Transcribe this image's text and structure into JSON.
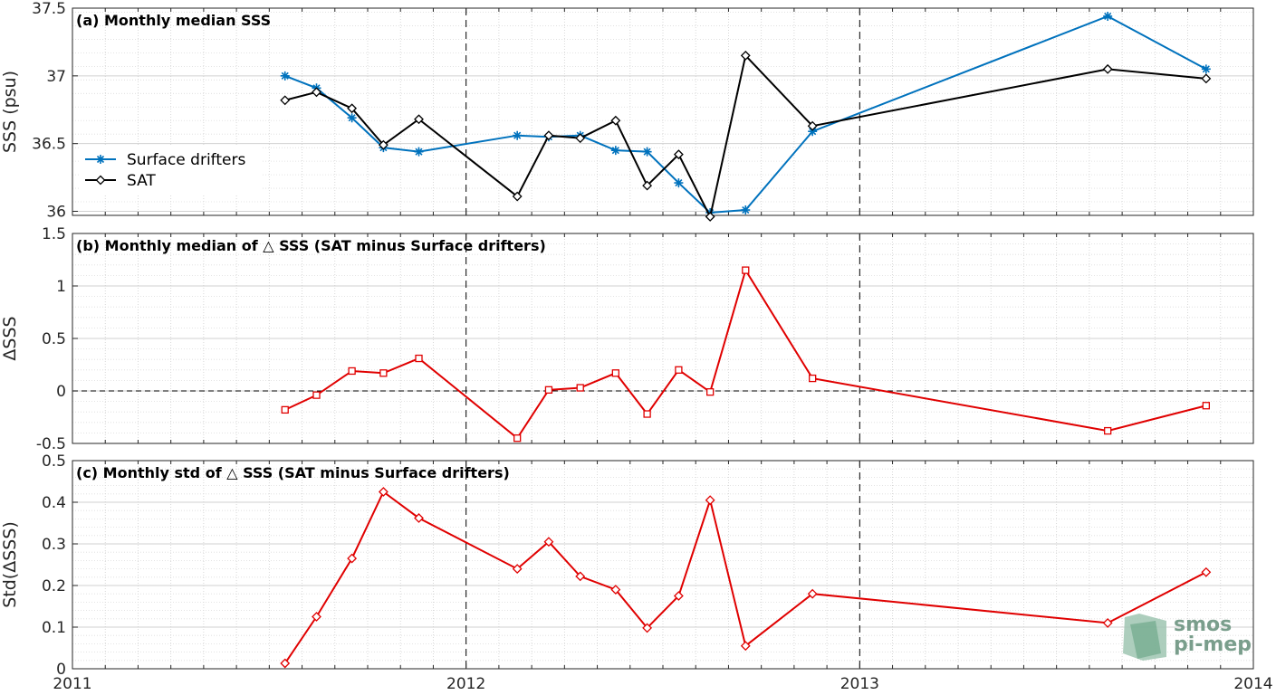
{
  "chart_data": [
    {
      "type": "line",
      "title": "(a) Monthly median SSS",
      "ylabel": "SSS (psu)",
      "ylim": [
        35.97,
        37.5
      ],
      "yticks": [
        36,
        36.5,
        37,
        37.5
      ],
      "ytick_labels": [
        "36",
        "36.5",
        "37",
        "37.5"
      ],
      "xlim": [
        2011,
        2014
      ],
      "grid": true,
      "legend": "bottom-left",
      "series": [
        {
          "name": "Surface drifters",
          "color": "#0072bd",
          "marker": "star",
          "x": [
            2011.54,
            2011.62,
            2011.71,
            2011.79,
            2011.88,
            2012.13,
            2012.21,
            2012.29,
            2012.38,
            2012.46,
            2012.54,
            2012.62,
            2012.71,
            2012.88,
            2013.63,
            2013.88
          ],
          "y": [
            37.0,
            36.91,
            36.69,
            36.47,
            36.44,
            36.56,
            36.55,
            36.56,
            36.45,
            36.44,
            36.21,
            35.99,
            36.01,
            36.59,
            37.44,
            37.05
          ]
        },
        {
          "name": "SAT",
          "color": "#000000",
          "marker": "diamond",
          "x": [
            2011.54,
            2011.62,
            2011.71,
            2011.79,
            2011.88,
            2012.13,
            2012.21,
            2012.29,
            2012.38,
            2012.46,
            2012.54,
            2012.62,
            2012.71,
            2012.88,
            2013.63,
            2013.88
          ],
          "y": [
            36.82,
            36.88,
            36.76,
            36.49,
            36.68,
            36.11,
            36.56,
            36.54,
            36.67,
            36.19,
            36.42,
            35.96,
            37.15,
            36.63,
            37.05,
            36.98
          ]
        }
      ]
    },
    {
      "type": "line",
      "title": "(b) Monthly median of △ SSS (SAT minus Surface drifters)",
      "ylabel": "ΔSSS",
      "ylim": [
        -0.5,
        1.5
      ],
      "yticks": [
        -0.5,
        0,
        0.5,
        1,
        1.5
      ],
      "ytick_labels": [
        "-0.5",
        "0",
        "0.5",
        "1",
        "1.5"
      ],
      "xlim": [
        2011,
        2014
      ],
      "grid": true,
      "series": [
        {
          "color": "#e00000",
          "marker": "square",
          "x": [
            2011.54,
            2011.62,
            2011.71,
            2011.79,
            2011.88,
            2012.13,
            2012.21,
            2012.29,
            2012.38,
            2012.46,
            2012.54,
            2012.62,
            2012.71,
            2012.88,
            2013.63,
            2013.88
          ],
          "y": [
            -0.18,
            -0.04,
            0.19,
            0.17,
            0.31,
            -0.45,
            0.01,
            0.03,
            0.17,
            -0.22,
            0.2,
            -0.01,
            1.15,
            0.12,
            -0.38,
            -0.14
          ]
        }
      ]
    },
    {
      "type": "line",
      "title": "(c) Monthly std of △ SSS (SAT minus Surface drifters)",
      "ylabel": "Std(ΔSSS)",
      "ylim": [
        0,
        0.5
      ],
      "yticks": [
        0,
        0.1,
        0.2,
        0.3,
        0.4,
        0.5
      ],
      "ytick_labels": [
        "0",
        "0.1",
        "0.2",
        "0.3",
        "0.4",
        "0.5"
      ],
      "xlim": [
        2011,
        2014
      ],
      "xticks": [
        2011,
        2012,
        2013,
        2014
      ],
      "xtick_labels": [
        "2011",
        "2012",
        "2013",
        "2014"
      ],
      "grid": true,
      "series": [
        {
          "color": "#e00000",
          "marker": "diamond",
          "x": [
            2011.54,
            2011.62,
            2011.71,
            2011.79,
            2011.88,
            2012.13,
            2012.21,
            2012.29,
            2012.38,
            2012.46,
            2012.54,
            2012.62,
            2012.71,
            2012.88,
            2013.63,
            2013.88
          ],
          "y": [
            0.013,
            0.125,
            0.265,
            0.425,
            0.362,
            0.24,
            0.305,
            0.222,
            0.19,
            0.098,
            0.175,
            0.405,
            0.055,
            0.18,
            0.11,
            0.232
          ]
        }
      ]
    }
  ],
  "logo": {
    "line1": "smos",
    "line2": "pi-mep",
    "color": "#7a9e8c"
  }
}
